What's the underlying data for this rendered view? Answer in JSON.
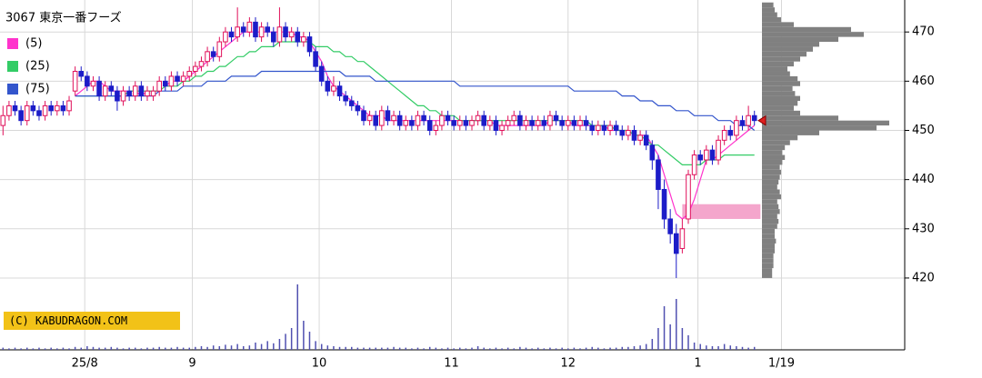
{
  "chart_data": {
    "type": "candlestick",
    "title": "3067 東京一番フーズ",
    "watermark": "(C) KABUDRAGON.COM",
    "ylim": [
      405.4,
      476.5
    ],
    "yticks": [
      420,
      430,
      440,
      450,
      460,
      470
    ],
    "xlim": [
      -0.5,
      150
    ],
    "xticks": [
      {
        "value": 13.6,
        "label": "25/8"
      },
      {
        "value": 31.5,
        "label": "9"
      },
      {
        "value": 52.6,
        "label": "10"
      },
      {
        "value": 74.6,
        "label": "11"
      },
      {
        "value": 94,
        "label": "12"
      },
      {
        "value": 115.6,
        "label": "1"
      },
      {
        "value": 129.5,
        "label": "1/19"
      }
    ],
    "grid": true,
    "up_color": "#e0105a",
    "down_color": "#1c1cc8",
    "ohlc": [
      [
        451,
        455,
        449,
        453
      ],
      [
        453,
        456,
        452,
        455
      ],
      [
        455,
        456,
        453,
        454
      ],
      [
        454,
        455,
        451,
        452
      ],
      [
        452,
        456,
        451,
        455
      ],
      [
        455,
        456,
        453,
        454
      ],
      [
        454,
        455,
        452,
        453
      ],
      [
        453,
        456,
        452,
        455
      ],
      [
        455,
        456,
        453,
        454
      ],
      [
        454,
        456,
        453,
        455
      ],
      [
        455,
        456,
        453,
        454
      ],
      [
        454,
        457,
        453,
        456
      ],
      [
        458,
        463,
        457,
        462
      ],
      [
        462,
        463,
        460,
        461
      ],
      [
        461,
        462,
        458,
        459
      ],
      [
        459,
        461,
        458,
        460
      ],
      [
        460,
        461,
        456,
        457
      ],
      [
        457,
        460,
        456,
        459
      ],
      [
        459,
        460,
        457,
        458
      ],
      [
        458,
        459,
        454,
        456
      ],
      [
        456,
        459,
        455,
        458
      ],
      [
        458,
        459,
        456,
        457
      ],
      [
        457,
        460,
        456,
        459
      ],
      [
        459,
        460,
        456,
        457
      ],
      [
        457,
        459,
        456,
        458
      ],
      [
        457,
        459,
        456,
        458
      ],
      [
        458,
        461,
        457,
        460
      ],
      [
        460,
        461,
        458,
        459
      ],
      [
        459,
        462,
        458,
        461
      ],
      [
        461,
        462,
        459,
        460
      ],
      [
        460,
        462,
        459,
        461
      ],
      [
        461,
        463,
        460,
        462
      ],
      [
        462,
        464,
        461,
        463
      ],
      [
        463,
        465,
        462,
        464
      ],
      [
        464,
        467,
        463,
        466
      ],
      [
        466,
        467,
        464,
        465
      ],
      [
        465,
        469,
        464,
        468
      ],
      [
        468,
        471,
        467,
        470
      ],
      [
        470,
        471,
        468,
        469
      ],
      [
        469,
        475,
        468,
        471
      ],
      [
        471,
        472,
        469,
        470
      ],
      [
        470,
        473,
        469,
        472
      ],
      [
        472,
        473,
        468,
        469
      ],
      [
        469,
        472,
        468,
        471
      ],
      [
        471,
        472,
        469,
        470
      ],
      [
        470,
        471,
        467,
        468
      ],
      [
        468,
        475,
        467,
        471
      ],
      [
        471,
        472,
        468,
        469
      ],
      [
        469,
        471,
        468,
        470
      ],
      [
        470,
        471,
        467,
        468
      ],
      [
        468,
        470,
        467,
        469
      ],
      [
        469,
        470,
        465,
        466
      ],
      [
        466,
        467,
        462,
        463
      ],
      [
        463,
        464,
        459,
        460
      ],
      [
        460,
        461,
        457,
        458
      ],
      [
        458,
        461,
        457,
        459
      ],
      [
        459,
        460,
        456,
        457
      ],
      [
        457,
        458,
        455,
        456
      ],
      [
        456,
        457,
        454,
        455
      ],
      [
        455,
        456,
        453,
        454
      ],
      [
        454,
        455,
        451,
        452
      ],
      [
        452,
        454,
        451,
        453
      ],
      [
        453,
        454,
        450,
        451
      ],
      [
        451,
        455,
        450,
        454
      ],
      [
        454,
        455,
        451,
        452
      ],
      [
        452,
        454,
        451,
        453
      ],
      [
        453,
        454,
        450,
        451
      ],
      [
        451,
        453,
        450,
        452
      ],
      [
        452,
        453,
        450,
        451
      ],
      [
        451,
        454,
        450,
        453
      ],
      [
        453,
        454,
        451,
        452
      ],
      [
        452,
        453,
        449,
        450
      ],
      [
        450,
        452,
        449,
        451
      ],
      [
        451,
        454,
        450,
        453
      ],
      [
        453,
        454,
        451,
        452
      ],
      [
        452,
        453,
        450,
        451
      ],
      [
        451,
        453,
        450,
        452
      ],
      [
        452,
        453,
        450,
        451
      ],
      [
        451,
        453,
        450,
        452
      ],
      [
        452,
        454,
        451,
        453
      ],
      [
        453,
        454,
        450,
        451
      ],
      [
        451,
        453,
        450,
        452
      ],
      [
        452,
        453,
        449,
        450
      ],
      [
        450,
        452,
        449,
        451
      ],
      [
        451,
        453,
        450,
        452
      ],
      [
        452,
        454,
        451,
        453
      ],
      [
        453,
        454,
        450,
        451
      ],
      [
        451,
        453,
        450,
        452
      ],
      [
        452,
        453,
        450,
        451
      ],
      [
        451,
        453,
        450,
        452
      ],
      [
        452,
        453,
        450,
        451
      ],
      [
        451,
        454,
        450,
        453
      ],
      [
        453,
        454,
        451,
        452
      ],
      [
        452,
        453,
        450,
        451
      ],
      [
        451,
        453,
        450,
        452
      ],
      [
        452,
        453,
        450,
        451
      ],
      [
        451,
        453,
        450,
        452
      ],
      [
        452,
        453,
        450,
        451
      ],
      [
        451,
        452,
        449,
        450
      ],
      [
        450,
        452,
        449,
        451
      ],
      [
        451,
        452,
        449,
        450
      ],
      [
        450,
        452,
        449,
        451
      ],
      [
        451,
        452,
        449,
        450
      ],
      [
        450,
        451,
        448,
        449
      ],
      [
        449,
        451,
        448,
        450
      ],
      [
        450,
        451,
        447,
        448
      ],
      [
        448,
        450,
        447,
        449
      ],
      [
        449,
        450,
        446,
        447
      ],
      [
        447,
        448,
        442,
        444
      ],
      [
        444,
        445,
        434,
        438
      ],
      [
        438,
        440,
        430,
        432
      ],
      [
        432,
        434,
        427,
        429
      ],
      [
        429,
        431,
        420,
        425
      ],
      [
        426,
        432,
        425,
        430
      ],
      [
        432,
        442,
        431,
        441
      ],
      [
        441,
        446,
        440,
        445
      ],
      [
        445,
        446,
        443,
        444
      ],
      [
        444,
        447,
        443,
        446
      ],
      [
        446,
        447,
        443,
        444
      ],
      [
        444,
        449,
        443,
        448
      ],
      [
        448,
        451,
        447,
        450
      ],
      [
        450,
        451,
        448,
        449
      ],
      [
        449,
        453,
        448,
        452
      ],
      [
        452,
        453,
        450,
        451
      ],
      [
        451,
        455,
        450,
        453
      ],
      [
        453,
        454,
        451,
        452
      ]
    ],
    "series": [
      {
        "name": "(5)",
        "color": "#ff33cc",
        "values": [
          null,
          null,
          null,
          null,
          null,
          null,
          null,
          null,
          null,
          null,
          null,
          null,
          457,
          458,
          459,
          460,
          460,
          459,
          458,
          458,
          458,
          458,
          458,
          457,
          458,
          458,
          458,
          459,
          460,
          460,
          460,
          461,
          462,
          463,
          464,
          465,
          466,
          467,
          468,
          469,
          470,
          470,
          470,
          470,
          470,
          470,
          470,
          470,
          470,
          469,
          469,
          468,
          466,
          464,
          461,
          459,
          458,
          457,
          456,
          455,
          454,
          453,
          453,
          453,
          452,
          452,
          452,
          452,
          452,
          452,
          452,
          452,
          452,
          452,
          452,
          452,
          452,
          452,
          452,
          452,
          452,
          452,
          451,
          451,
          451,
          451,
          451,
          451,
          451,
          451,
          451,
          452,
          452,
          452,
          452,
          451,
          451,
          451,
          451,
          451,
          451,
          450,
          450,
          450,
          450,
          449,
          449,
          449,
          447,
          445,
          441,
          437,
          433,
          432,
          433,
          436,
          440,
          444,
          444,
          445,
          446,
          447,
          448,
          449,
          450,
          451
        ]
      },
      {
        "name": "(25)",
        "color": "#33cc66",
        "values": [
          null,
          null,
          null,
          null,
          null,
          null,
          null,
          null,
          null,
          null,
          null,
          null,
          457,
          457,
          457,
          457,
          457,
          457,
          457,
          457,
          457,
          458,
          458,
          458,
          458,
          458,
          458,
          459,
          459,
          459,
          460,
          460,
          461,
          461,
          462,
          462,
          463,
          463,
          464,
          465,
          465,
          466,
          466,
          467,
          467,
          467,
          468,
          468,
          468,
          468,
          468,
          468,
          467,
          467,
          467,
          466,
          466,
          465,
          465,
          464,
          464,
          463,
          462,
          461,
          460,
          459,
          458,
          457,
          456,
          455,
          455,
          454,
          454,
          453,
          453,
          453,
          452,
          452,
          452,
          452,
          452,
          452,
          452,
          452,
          452,
          452,
          452,
          452,
          452,
          452,
          452,
          452,
          452,
          452,
          452,
          452,
          452,
          452,
          451,
          451,
          451,
          451,
          450,
          450,
          450,
          449,
          449,
          448,
          447,
          447,
          446,
          445,
          444,
          443,
          443,
          443,
          443,
          444,
          444,
          444,
          445,
          445,
          445,
          445,
          445,
          445
        ]
      },
      {
        "name": "(75)",
        "color": "#3355cc",
        "values": [
          null,
          null,
          null,
          null,
          null,
          null,
          null,
          null,
          null,
          null,
          null,
          null,
          457,
          457,
          457,
          457,
          457,
          457,
          457,
          457,
          457,
          457,
          457,
          457,
          457,
          457,
          458,
          458,
          458,
          458,
          459,
          459,
          459,
          459,
          460,
          460,
          460,
          460,
          461,
          461,
          461,
          461,
          461,
          462,
          462,
          462,
          462,
          462,
          462,
          462,
          462,
          462,
          462,
          462,
          462,
          462,
          462,
          461,
          461,
          461,
          461,
          461,
          460,
          460,
          460,
          460,
          460,
          460,
          460,
          460,
          460,
          460,
          460,
          460,
          460,
          460,
          459,
          459,
          459,
          459,
          459,
          459,
          459,
          459,
          459,
          459,
          459,
          459,
          459,
          459,
          459,
          459,
          459,
          459,
          459,
          458,
          458,
          458,
          458,
          458,
          458,
          458,
          458,
          457,
          457,
          457,
          456,
          456,
          456,
          455,
          455,
          455,
          454,
          454,
          454,
          453,
          453,
          453,
          453,
          452,
          452,
          452,
          451,
          451,
          451,
          450
        ]
      }
    ],
    "volume_color": "#5050b0",
    "volume_ylim": [
      0,
      100
    ],
    "volume": [
      3,
      2,
      3,
      2,
      3,
      2,
      3,
      2,
      3,
      2,
      3,
      2,
      4,
      3,
      5,
      4,
      3,
      3,
      4,
      3,
      2,
      3,
      3,
      2,
      3,
      3,
      4,
      3,
      3,
      4,
      3,
      3,
      4,
      5,
      4,
      6,
      5,
      7,
      6,
      8,
      5,
      6,
      10,
      8,
      12,
      9,
      15,
      22,
      30,
      90,
      40,
      25,
      12,
      8,
      6,
      5,
      4,
      4,
      4,
      3,
      3,
      3,
      3,
      3,
      3,
      4,
      3,
      3,
      2,
      3,
      2,
      4,
      3,
      2,
      3,
      2,
      3,
      2,
      3,
      5,
      3,
      2,
      3,
      2,
      3,
      2,
      4,
      3,
      2,
      3,
      2,
      3,
      2,
      3,
      2,
      3,
      2,
      3,
      4,
      3,
      2,
      3,
      3,
      4,
      4,
      5,
      6,
      8,
      15,
      30,
      60,
      35,
      70,
      30,
      20,
      10,
      8,
      6,
      5,
      5,
      8,
      6,
      5,
      4,
      3,
      4
    ],
    "profile_color": "#808080",
    "profile_xlim": [
      0,
      100
    ],
    "profile_bins": [
      420,
      421,
      422,
      423,
      424,
      425,
      426,
      427,
      428,
      429,
      430,
      431,
      432,
      433,
      434,
      435,
      436,
      437,
      438,
      439,
      440,
      441,
      442,
      443,
      444,
      445,
      446,
      447,
      448,
      449,
      450,
      451,
      452,
      453,
      454,
      455,
      456,
      457,
      458,
      459,
      460,
      461,
      462,
      463,
      464,
      465,
      466,
      467,
      468,
      469,
      470,
      471,
      472,
      473,
      474,
      475,
      476
    ],
    "profile": [
      8,
      8,
      9,
      9,
      9,
      10,
      10,
      11,
      10,
      10,
      12,
      13,
      12,
      14,
      13,
      12,
      15,
      14,
      12,
      13,
      14,
      15,
      14,
      16,
      18,
      16,
      18,
      22,
      28,
      45,
      90,
      100,
      60,
      30,
      25,
      28,
      30,
      26,
      24,
      30,
      28,
      22,
      20,
      25,
      30,
      35,
      40,
      45,
      60,
      80,
      70,
      25,
      15,
      12,
      10,
      9
    ],
    "zone": {
      "low": 432,
      "high": 435,
      "from": 113,
      "to": 126,
      "color": "#f4a6cc"
    }
  }
}
